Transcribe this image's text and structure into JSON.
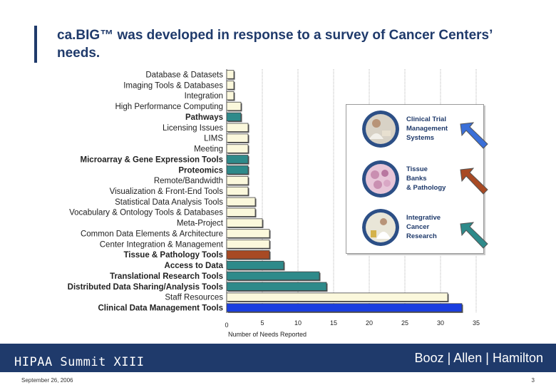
{
  "slide": {
    "title": "ca.BIG™ was developed in response to a survey of Cancer Centers’ needs.",
    "footer_left": "HIPAA Summit XIII",
    "footer_right": "Booz | Allen | Hamilton",
    "date": "September 26, 2006",
    "page_number": "3"
  },
  "legend": {
    "items": [
      {
        "label": "Clinical Trial\nManagement\nSystems",
        "photo_icon": "clinician-photo-icon",
        "arrow_color": "#3a6fd8"
      },
      {
        "label": "Tissue\nBanks\n& Pathology",
        "photo_icon": "tissue-cells-photo-icon",
        "arrow_color": "#a84a24"
      },
      {
        "label": "Integrative\nCancer\nResearch",
        "photo_icon": "researcher-photo-icon",
        "arrow_color": "#2e8a8a"
      }
    ]
  },
  "colors": {
    "default_bar": "#fbf8dc",
    "teal": "#2e8a8a",
    "brown": "#a84a24",
    "blue": "#1a3ee0",
    "navy": "#1f3a6b"
  },
  "chart_data": {
    "type": "bar",
    "orientation": "horizontal",
    "xlabel": "Number of Needs Reported",
    "ylabel": "",
    "xlim": [
      0,
      35
    ],
    "xticks": [
      0,
      5,
      10,
      15,
      20,
      25,
      30,
      35
    ],
    "grid": true,
    "categories": [
      "Database & Datasets",
      "Imaging Tools & Databases",
      "Integration",
      "High Performance Computing",
      "Pathways",
      "Licensing Issues",
      "LIMS",
      "Meeting",
      "Microarray & Gene Expression Tools",
      "Proteomics",
      "Remote/Bandwidth",
      "Visualization & Front-End Tools",
      "Statistical Data Analysis Tools",
      "Vocabulary & Ontology Tools & Databases",
      "Meta-Project",
      "Common Data Elements & Architecture",
      "Center Integration & Management",
      "Tissue & Pathology Tools",
      "Access to Data",
      "Translational Research Tools",
      "Distributed Data Sharing/Analysis Tools",
      "Staff Resources",
      "Clinical Data Management Tools"
    ],
    "values": [
      1,
      1,
      1,
      2,
      2,
      3,
      3,
      3,
      3,
      3,
      3,
      3,
      4,
      4,
      5,
      6,
      6,
      6,
      8,
      13,
      14,
      31,
      33
    ],
    "bold": [
      false,
      false,
      false,
      false,
      true,
      false,
      false,
      false,
      true,
      true,
      false,
      false,
      false,
      false,
      false,
      false,
      false,
      true,
      true,
      true,
      true,
      false,
      true
    ],
    "bar_colors": [
      "default",
      "default",
      "default",
      "default",
      "teal",
      "default",
      "default",
      "default",
      "teal",
      "teal",
      "default",
      "default",
      "default",
      "default",
      "default",
      "default",
      "default",
      "brown",
      "teal",
      "teal",
      "teal",
      "default",
      "blue"
    ]
  }
}
